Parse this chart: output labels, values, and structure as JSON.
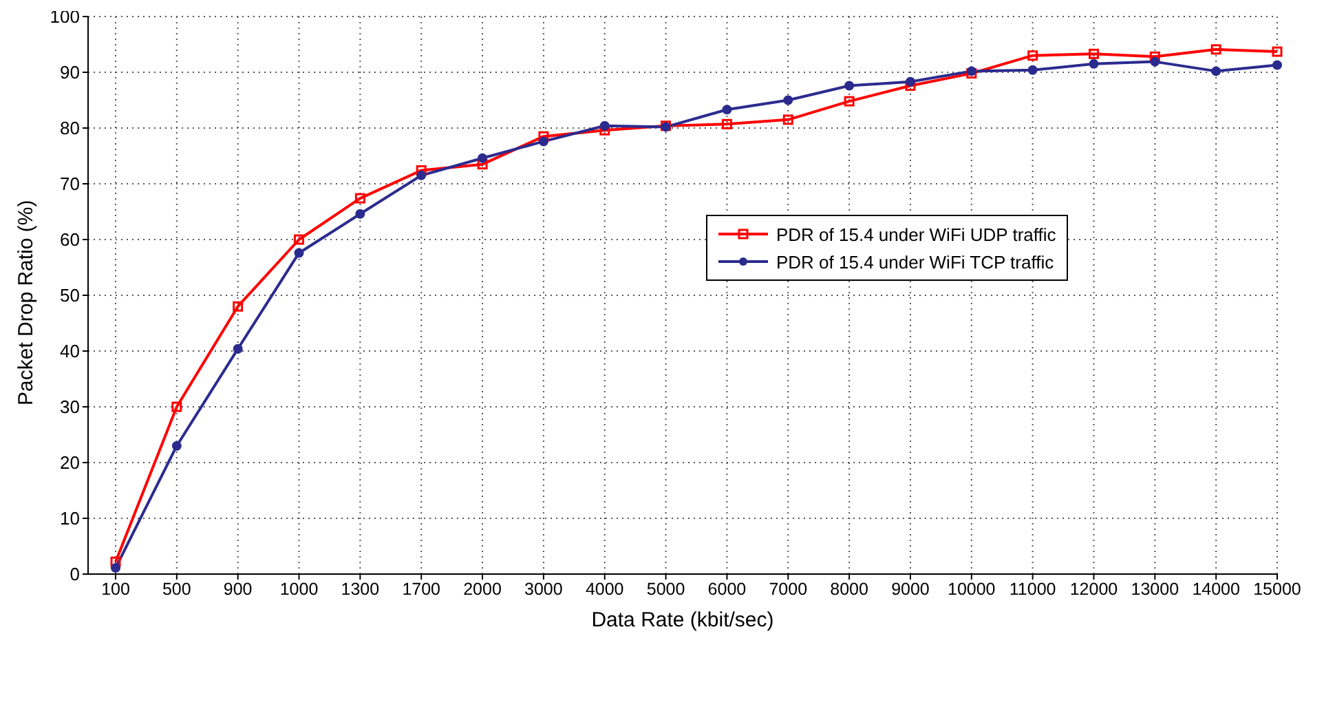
{
  "chart_data": {
    "type": "line",
    "xlabel": "Data Rate (kbit/sec)",
    "ylabel": "Packet Drop Ratio (%)",
    "categories": [
      "100",
      "500",
      "900",
      "1000",
      "1300",
      "1700",
      "2000",
      "3000",
      "4000",
      "5000",
      "6000",
      "7000",
      "8000",
      "9000",
      "10000",
      "11000",
      "12000",
      "13000",
      "14000",
      "15000"
    ],
    "series": [
      {
        "name": "PDR of 15.4 under WiFi UDP traffic",
        "color": "#ff0000",
        "marker": "square",
        "values": [
          2.2,
          30,
          48,
          60,
          67.4,
          72.4,
          73.5,
          78.5,
          79.6,
          80.4,
          80.7,
          81.5,
          84.8,
          87.6,
          89.8,
          93,
          93.3,
          92.8,
          94.1,
          93.7
        ]
      },
      {
        "name": "PDR of 15.4 under WiFi TCP traffic",
        "color": "#2b2b8f",
        "marker": "circle",
        "values": [
          1.1,
          23,
          40.4,
          57.6,
          64.6,
          71.5,
          74.6,
          77.6,
          80.4,
          80.2,
          83.3,
          85,
          87.6,
          88.3,
          90.2,
          90.4,
          91.5,
          91.9,
          90.2,
          91.3
        ]
      }
    ],
    "ylim": [
      0,
      100
    ],
    "yticks": [
      0,
      10,
      20,
      30,
      40,
      50,
      60,
      70,
      80,
      90,
      100
    ],
    "grid": true,
    "legend": "right",
    "line_style": "solid"
  }
}
